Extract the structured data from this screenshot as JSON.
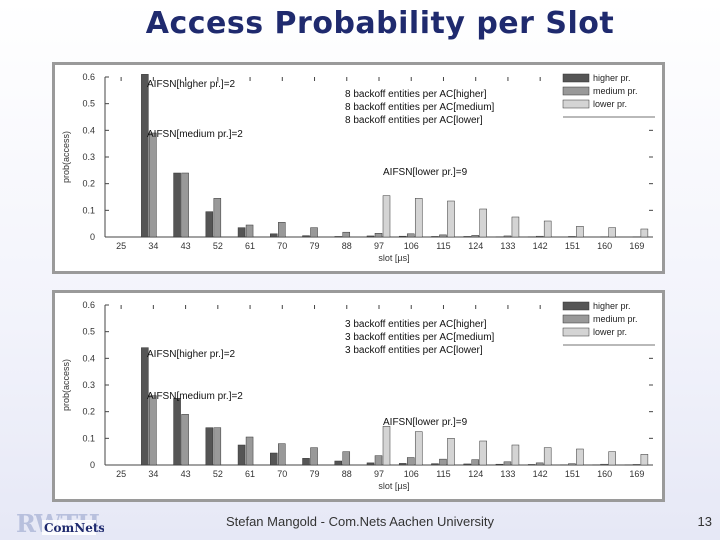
{
  "slide": {
    "title": "Access Probability per Slot",
    "footer": "Stefan Mangold - Com.Nets Aachen University",
    "page_number": "13",
    "logo_text_primary": "RWTH",
    "logo_text_secondary": "ComNets"
  },
  "colors": {
    "title": "#1f2a6e",
    "higher": "#555555",
    "medium": "#999999",
    "lower": "#d4d4d4"
  },
  "chart_data": [
    {
      "type": "bar",
      "xlabel": "slot [µs]",
      "ylabel": "prob(access)",
      "ylim": [
        0,
        0.6
      ],
      "yticks": [
        "0",
        "0.1",
        "0.2",
        "0.3",
        "0.4",
        "0.5",
        "0.6"
      ],
      "grid": false,
      "legend_position": "top-right",
      "categories": [
        "25",
        "34",
        "43",
        "52",
        "61",
        "70",
        "79",
        "88",
        "97",
        "106",
        "115",
        "124",
        "133",
        "142",
        "151",
        "160",
        "169"
      ],
      "series": [
        {
          "name": "higher pr.",
          "values": [
            0,
            0.61,
            0.24,
            0.095,
            0.035,
            0.012,
            0.005,
            0.002,
            0.004,
            0.003,
            0.002,
            0.002,
            0.001,
            0.001,
            0,
            0,
            0
          ]
        },
        {
          "name": "medium pr.",
          "values": [
            0,
            0.39,
            0.24,
            0.145,
            0.045,
            0.055,
            0.035,
            0.018,
            0.014,
            0.012,
            0.008,
            0.006,
            0.004,
            0.003,
            0.002,
            0.001,
            0.001
          ]
        },
        {
          "name": "lower pr.",
          "values": [
            0,
            0,
            0,
            0,
            0,
            0,
            0,
            0,
            0.155,
            0.145,
            0.135,
            0.105,
            0.075,
            0.06,
            0.04,
            0.035,
            0.03
          ]
        }
      ],
      "legend_entries": [
        "higher pr.",
        "medium pr.",
        "lower pr."
      ],
      "legend_block": [
        "8 backoff entities per AC[higher]",
        "8 backoff entities per AC[medium]",
        "8 backoff entities per AC[lower]"
      ],
      "annotations": [
        "AIFSN[higher pr.]=2",
        "AIFSN[medium pr.]=2",
        "AIFSN[lower pr.]=9"
      ]
    },
    {
      "type": "bar",
      "xlabel": "slot [µs]",
      "ylabel": "prob(access)",
      "ylim": [
        0,
        0.6
      ],
      "yticks": [
        "0",
        "0.1",
        "0.2",
        "0.3",
        "0.4",
        "0.5",
        "0.6"
      ],
      "grid": false,
      "legend_position": "top-right",
      "categories": [
        "25",
        "34",
        "43",
        "52",
        "61",
        "70",
        "79",
        "88",
        "97",
        "106",
        "115",
        "124",
        "133",
        "142",
        "151",
        "160",
        "169"
      ],
      "series": [
        {
          "name": "higher pr.",
          "values": [
            0,
            0.44,
            0.25,
            0.14,
            0.075,
            0.045,
            0.025,
            0.015,
            0.008,
            0.006,
            0.005,
            0.004,
            0.003,
            0.002,
            0.001,
            0.001,
            0.001
          ]
        },
        {
          "name": "medium pr.",
          "values": [
            0,
            0.26,
            0.19,
            0.14,
            0.105,
            0.08,
            0.065,
            0.05,
            0.035,
            0.028,
            0.022,
            0.02,
            0.012,
            0.008,
            0.005,
            0.003,
            0.002
          ]
        },
        {
          "name": "lower pr.",
          "values": [
            0,
            0,
            0,
            0,
            0,
            0,
            0,
            0,
            0.145,
            0.125,
            0.1,
            0.09,
            0.075,
            0.065,
            0.06,
            0.05,
            0.04
          ]
        }
      ],
      "legend_entries": [
        "higher pr.",
        "medium pr.",
        "lower pr."
      ],
      "legend_block": [
        "3 backoff entities per AC[higher]",
        "3 backoff entities per AC[medium]",
        "3 backoff entities per AC[lower]"
      ],
      "annotations": [
        "AIFSN[higher pr.]=2",
        "AIFSN[medium pr.]=2",
        "AIFSN[lower pr.]=9"
      ]
    }
  ]
}
